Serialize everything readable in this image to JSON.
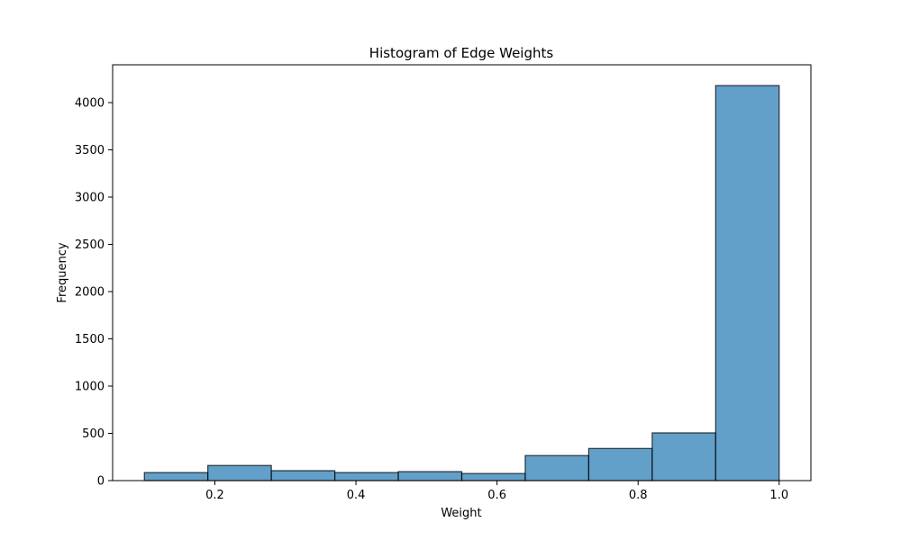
{
  "chart_data": {
    "type": "bar",
    "title": "Histogram of Edge Weights",
    "xlabel": "Weight",
    "ylabel": "Frequency",
    "bins": [
      {
        "x0": 0.1,
        "x1": 0.19,
        "value": 85
      },
      {
        "x0": 0.19,
        "x1": 0.28,
        "value": 160
      },
      {
        "x0": 0.28,
        "x1": 0.37,
        "value": 105
      },
      {
        "x0": 0.37,
        "x1": 0.46,
        "value": 85
      },
      {
        "x0": 0.46,
        "x1": 0.55,
        "value": 95
      },
      {
        "x0": 0.55,
        "x1": 0.64,
        "value": 75
      },
      {
        "x0": 0.64,
        "x1": 0.73,
        "value": 265
      },
      {
        "x0": 0.73,
        "x1": 0.82,
        "value": 340
      },
      {
        "x0": 0.82,
        "x1": 0.91,
        "value": 505
      },
      {
        "x0": 0.91,
        "x1": 1.0,
        "value": 4180
      }
    ],
    "xlim": [
      0.055,
      1.045
    ],
    "ylim": [
      0,
      4400
    ],
    "xticks": [
      {
        "value": 0.2,
        "label": "0.2"
      },
      {
        "value": 0.4,
        "label": "0.4"
      },
      {
        "value": 0.6,
        "label": "0.6"
      },
      {
        "value": 0.8,
        "label": "0.8"
      },
      {
        "value": 1.0,
        "label": "1.0"
      }
    ],
    "yticks": [
      {
        "value": 0,
        "label": "0"
      },
      {
        "value": 500,
        "label": "500"
      },
      {
        "value": 1000,
        "label": "1000"
      },
      {
        "value": 1500,
        "label": "1500"
      },
      {
        "value": 2000,
        "label": "2000"
      },
      {
        "value": 2500,
        "label": "2500"
      },
      {
        "value": 3000,
        "label": "3000"
      },
      {
        "value": 3500,
        "label": "3500"
      },
      {
        "value": 4000,
        "label": "4000"
      }
    ],
    "grid": false,
    "colors": {
      "bar_fill": "#1f77b4",
      "bar_edge": "#000000"
    },
    "bar_alpha": 0.7
  }
}
